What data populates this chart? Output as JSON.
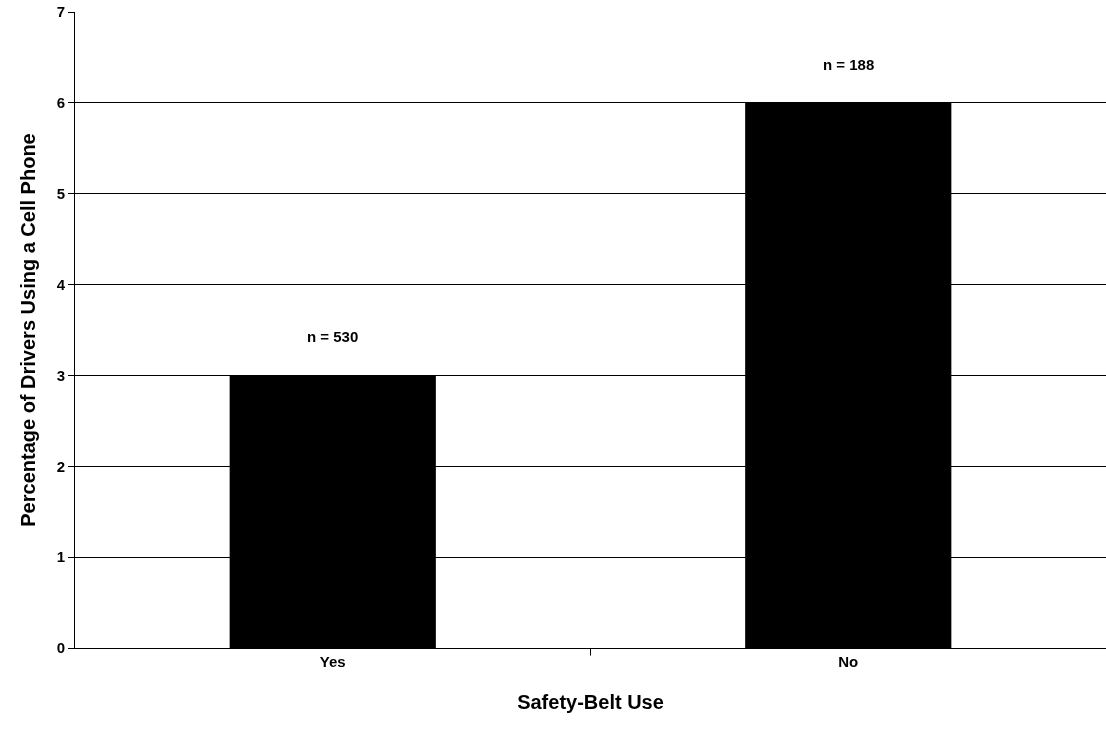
{
  "chart_data": {
    "type": "bar",
    "xlabel": "Safety-Belt Use",
    "ylabel": "Percentage of Drivers Using a Cell Phone",
    "categories": [
      "Yes",
      "No"
    ],
    "values": [
      3,
      6
    ],
    "color": "#000000",
    "annotations": [
      {
        "text": "n = 530",
        "x": "Yes",
        "y": 3
      },
      {
        "text": "n = 188",
        "x": "No",
        "y": 6
      }
    ],
    "ylim": [
      0,
      7
    ],
    "yticks": [
      0,
      1,
      2,
      3,
      4,
      5,
      6,
      7
    ],
    "grid": "y",
    "legend": false
  }
}
